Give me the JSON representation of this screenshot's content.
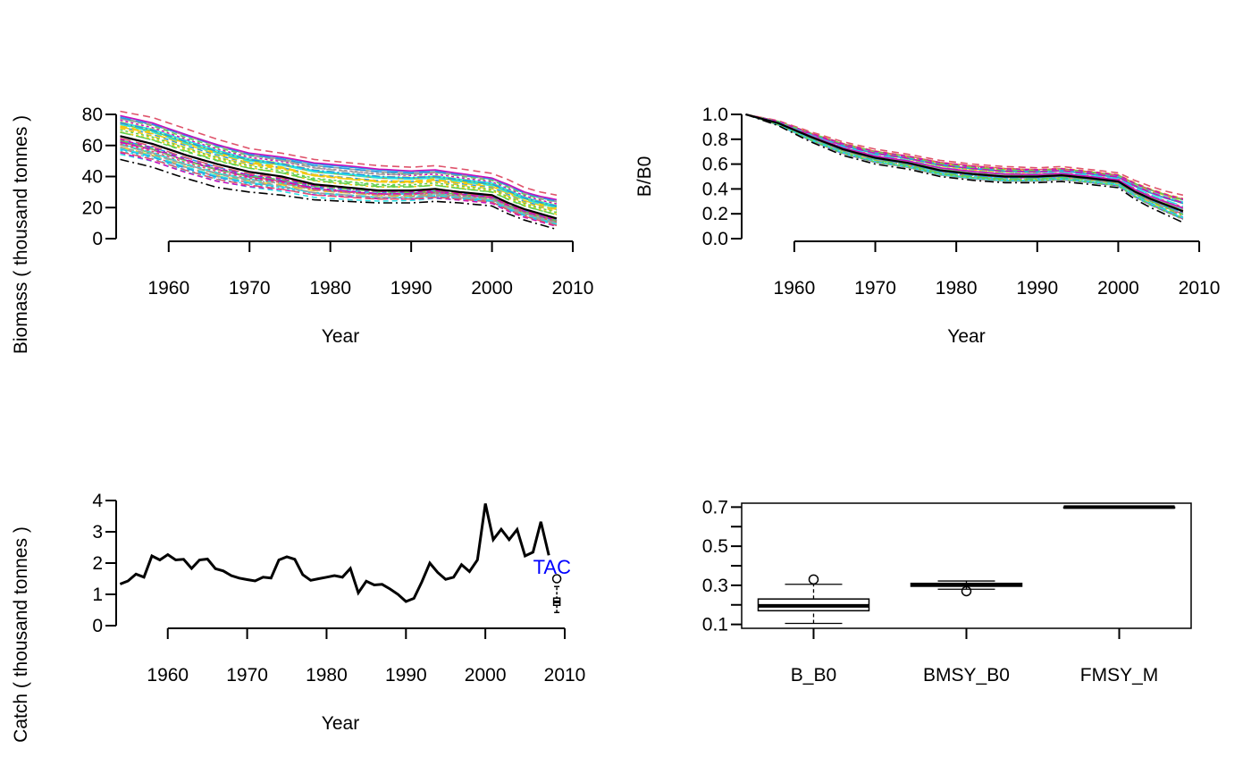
{
  "chart_data": [
    {
      "type": "line",
      "xlabel": "Year",
      "ylabel": "Biomass ( thousand tonnes )",
      "xlim": [
        1953.5,
        2009
      ],
      "ylim": [
        0,
        80
      ],
      "x_ticks": [
        1960,
        1970,
        1980,
        1990,
        2000,
        2010
      ],
      "y_ticks": [
        0,
        20,
        40,
        60,
        80
      ],
      "x_tick_labels": [
        "1960",
        "1970",
        "1980",
        "1990",
        "2000",
        "2010"
      ],
      "y_tick_labels": [
        "0",
        "20",
        "40",
        "60",
        "80"
      ],
      "note": "approximately 48 simulated biomass trajectories (multicolored dashed lines) plus solid black reference line",
      "summary_series": [
        {
          "role": "upper",
          "x": [
            1954,
            1958,
            1962,
            1966,
            1970,
            1974,
            1978,
            1982,
            1986,
            1990,
            1993,
            1996,
            2000,
            2002,
            2004,
            2006,
            2008
          ],
          "values": [
            82,
            78,
            71,
            64,
            58,
            55,
            51,
            49,
            47,
            46,
            47,
            45,
            42,
            38,
            33,
            30,
            28
          ]
        },
        {
          "role": "central",
          "x": [
            1954,
            1958,
            1962,
            1966,
            1970,
            1974,
            1978,
            1982,
            1986,
            1990,
            1993,
            1996,
            2000,
            2002,
            2004,
            2006,
            2008
          ],
          "values": [
            66,
            61,
            54,
            48,
            43,
            40,
            35,
            33,
            31,
            31,
            32,
            30,
            28,
            23,
            19,
            16,
            13
          ]
        },
        {
          "role": "lower",
          "x": [
            1954,
            1958,
            1962,
            1966,
            1970,
            1974,
            1978,
            1982,
            1986,
            1990,
            1993,
            1996,
            2000,
            2002,
            2004,
            2006,
            2008
          ],
          "values": [
            51,
            46,
            39,
            33,
            30,
            28,
            25,
            24,
            23,
            23,
            24,
            23,
            21,
            16,
            12,
            9,
            6
          ]
        }
      ]
    },
    {
      "type": "line",
      "xlabel": "Year",
      "ylabel": "B/B0",
      "xlim": [
        1953.5,
        2009
      ],
      "ylim": [
        0,
        1
      ],
      "x_ticks": [
        1960,
        1970,
        1980,
        1990,
        2000,
        2010
      ],
      "y_ticks": [
        0,
        0.2,
        0.4,
        0.6,
        0.8,
        1.0
      ],
      "x_tick_labels": [
        "1960",
        "1970",
        "1980",
        "1990",
        "2000",
        "2010"
      ],
      "y_tick_labels": [
        "0.0",
        "0.2",
        "0.4",
        "0.6",
        "0.8",
        "1.0"
      ],
      "note": "approximately 48 simulated depletion trajectories all starting at 1.0",
      "summary_series": [
        {
          "role": "upper",
          "x": [
            1954,
            1958,
            1962,
            1966,
            1970,
            1974,
            1978,
            1982,
            1986,
            1990,
            1993,
            1996,
            2000,
            2002,
            2004,
            2006,
            2008
          ],
          "values": [
            1.0,
            0.95,
            0.86,
            0.78,
            0.72,
            0.68,
            0.63,
            0.6,
            0.58,
            0.57,
            0.58,
            0.56,
            0.53,
            0.47,
            0.42,
            0.38,
            0.35
          ]
        },
        {
          "role": "central",
          "x": [
            1954,
            1958,
            1962,
            1966,
            1970,
            1974,
            1978,
            1982,
            1986,
            1990,
            1993,
            1996,
            2000,
            2002,
            2004,
            2006,
            2008
          ],
          "values": [
            1.0,
            0.93,
            0.82,
            0.72,
            0.65,
            0.61,
            0.55,
            0.52,
            0.5,
            0.5,
            0.51,
            0.49,
            0.46,
            0.38,
            0.32,
            0.27,
            0.22
          ]
        },
        {
          "role": "lower",
          "x": [
            1954,
            1958,
            1962,
            1966,
            1970,
            1974,
            1978,
            1982,
            1986,
            1990,
            1993,
            1996,
            2000,
            2002,
            2004,
            2006,
            2008
          ],
          "values": [
            1.0,
            0.91,
            0.78,
            0.67,
            0.6,
            0.56,
            0.5,
            0.47,
            0.45,
            0.45,
            0.46,
            0.44,
            0.41,
            0.32,
            0.25,
            0.19,
            0.13
          ]
        }
      ]
    },
    {
      "type": "line",
      "xlabel": "Year",
      "ylabel": "Catch ( thousand tonnes )",
      "xlim": [
        1953.5,
        2010
      ],
      "ylim": [
        0,
        4
      ],
      "x_ticks": [
        1960,
        1970,
        1980,
        1990,
        2000,
        2010
      ],
      "y_ticks": [
        0,
        1,
        2,
        3,
        4
      ],
      "x_tick_labels": [
        "1960",
        "1970",
        "1980",
        "1990",
        "2000",
        "2010"
      ],
      "y_tick_labels": [
        "0",
        "1",
        "2",
        "3",
        "4"
      ],
      "annotation": "TAC",
      "annotation_color": "#0000ff",
      "series": [
        {
          "x": [
            1954,
            1955,
            1956,
            1957,
            1958,
            1959,
            1960,
            1961,
            1962,
            1963,
            1964,
            1965,
            1966,
            1967,
            1968,
            1969,
            1970,
            1971,
            1972,
            1973,
            1974,
            1975,
            1976,
            1977,
            1978,
            1979,
            1980,
            1981,
            1982,
            1983,
            1984,
            1985,
            1986,
            1987,
            1988,
            1989,
            1990,
            1991,
            1992,
            1993,
            1994,
            1995,
            1996,
            1997,
            1998,
            1999,
            2000,
            2001,
            2002,
            2003,
            2004,
            2005,
            2006,
            2007,
            2008
          ],
          "values": [
            1.33,
            1.43,
            1.65,
            1.55,
            2.23,
            2.1,
            2.27,
            2.1,
            2.12,
            1.83,
            2.1,
            2.13,
            1.82,
            1.75,
            1.6,
            1.52,
            1.47,
            1.43,
            1.55,
            1.52,
            2.1,
            2.2,
            2.12,
            1.63,
            1.45,
            1.5,
            1.55,
            1.6,
            1.55,
            1.83,
            1.05,
            1.42,
            1.3,
            1.32,
            1.17,
            1.0,
            0.77,
            0.87,
            1.4,
            2.0,
            1.7,
            1.48,
            1.55,
            1.95,
            1.73,
            2.1,
            3.9,
            2.75,
            3.08,
            2.75,
            3.07,
            2.23,
            2.35,
            3.32,
            2.25
          ]
        }
      ],
      "tac_boxplot": {
        "x": 2009,
        "whisker_low": 0.42,
        "q1": 0.65,
        "median": 0.76,
        "q3": 0.88,
        "whisker_high": 1.25,
        "outliers": [
          1.5
        ]
      }
    },
    {
      "type": "box",
      "categories": [
        "B_B0",
        "BMSY_B0",
        "FMSY_M"
      ],
      "ylim": [
        0.08,
        0.72
      ],
      "y_ticks": [
        0.1,
        0.2,
        0.3,
        0.4,
        0.5,
        0.6,
        0.7
      ],
      "y_tick_labels": [
        "0.1",
        "",
        "0.3",
        "",
        "0.5",
        "",
        "0.7"
      ],
      "boxes": [
        {
          "category": "B_B0",
          "whisker_low": 0.105,
          "q1": 0.17,
          "median": 0.195,
          "q3": 0.23,
          "whisker_high": 0.305,
          "outliers": [
            0.33
          ]
        },
        {
          "category": "BMSY_B0",
          "whisker_low": 0.28,
          "q1": 0.295,
          "median": 0.302,
          "q3": 0.31,
          "whisker_high": 0.322,
          "outliers": [
            0.27
          ]
        },
        {
          "category": "FMSY_M",
          "whisker_low": 0.7,
          "q1": 0.7,
          "median": 0.7,
          "q3": 0.7,
          "whisker_high": 0.7,
          "outliers": []
        }
      ]
    }
  ],
  "palette": [
    "#000000",
    "#DF536B",
    "#61D04F",
    "#2297E6",
    "#28E2E5",
    "#CD0BBC",
    "#F5C710",
    "#9E9E9E"
  ]
}
